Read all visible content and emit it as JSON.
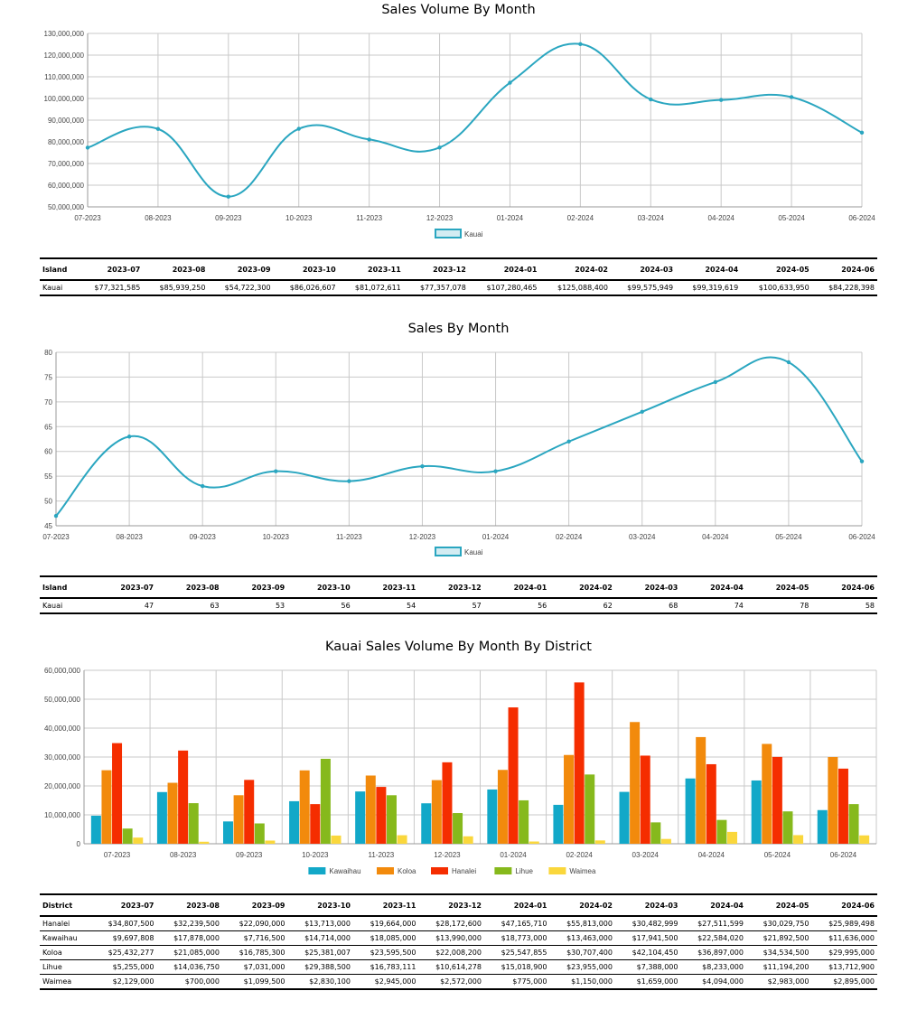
{
  "months": [
    "2023-07",
    "2023-08",
    "2023-09",
    "2023-10",
    "2023-11",
    "2023-12",
    "2024-01",
    "2024-02",
    "2024-03",
    "2024-04",
    "2024-05",
    "2024-06"
  ],
  "colors": {
    "line": "#2aa6c0",
    "Kawaihau": "#12a8c8",
    "Koloa": "#f28a0c",
    "Hanalei": "#f52d00",
    "Lihue": "#86b91c",
    "Waimea": "#fad73c"
  },
  "chart_data": [
    {
      "type": "line",
      "title": "Sales Volume By Month",
      "categories": [
        "07-2023",
        "08-2023",
        "09-2023",
        "10-2023",
        "11-2023",
        "12-2023",
        "01-2024",
        "02-2024",
        "03-2024",
        "04-2024",
        "05-2024",
        "06-2024"
      ],
      "series": [
        {
          "name": "Kauai",
          "values": [
            77321585,
            85939250,
            54722300,
            86026607,
            81072611,
            77357078,
            107280465,
            125088400,
            99575949,
            99319619,
            100633950,
            84228398
          ]
        }
      ],
      "ylim": [
        50000000,
        130000000
      ],
      "yticks": [
        50000000,
        60000000,
        70000000,
        80000000,
        90000000,
        100000000,
        110000000,
        120000000,
        130000000
      ],
      "ytick_labels": [
        "50,000,000",
        "60,000,000",
        "70,000,000",
        "80,000,000",
        "90,000,000",
        "100,000,000",
        "110,000,000",
        "120,000,000",
        "130,000,000"
      ],
      "legend": "bottom-center"
    },
    {
      "type": "line",
      "title": "Sales By Month",
      "categories": [
        "07-2023",
        "08-2023",
        "09-2023",
        "10-2023",
        "11-2023",
        "12-2023",
        "01-2024",
        "02-2024",
        "03-2024",
        "04-2024",
        "05-2024",
        "06-2024"
      ],
      "series": [
        {
          "name": "Kauai",
          "values": [
            47,
            63,
            53,
            56,
            54,
            57,
            56,
            62,
            68,
            74,
            78,
            58
          ]
        }
      ],
      "ylim": [
        45,
        80
      ],
      "yticks": [
        45,
        50,
        55,
        60,
        65,
        70,
        75,
        80
      ],
      "ytick_labels": [
        "45",
        "50",
        "55",
        "60",
        "65",
        "70",
        "75",
        "80"
      ],
      "legend": "bottom-center"
    },
    {
      "type": "bar",
      "title": "Kauai Sales Volume By Month By District",
      "categories": [
        "07-2023",
        "08-2023",
        "09-2023",
        "10-2023",
        "11-2023",
        "12-2023",
        "01-2024",
        "02-2024",
        "03-2024",
        "04-2024",
        "05-2024",
        "06-2024"
      ],
      "series": [
        {
          "name": "Kawaihau",
          "values": [
            9697808,
            17878000,
            7716500,
            14714000,
            18085000,
            13990000,
            18773000,
            13463000,
            17941500,
            22584020,
            21892500,
            11636000
          ]
        },
        {
          "name": "Koloa",
          "values": [
            25432277,
            21085000,
            16785300,
            25381007,
            23595500,
            22008200,
            25547855,
            30707400,
            42104450,
            36897000,
            34534500,
            29995000
          ]
        },
        {
          "name": "Hanalei",
          "values": [
            34807500,
            32239500,
            22090000,
            13713000,
            19664000,
            28172600,
            47165710,
            55813000,
            30482999,
            27511599,
            30029750,
            25989498
          ]
        },
        {
          "name": "Lihue",
          "values": [
            5255000,
            14036750,
            7031000,
            29388500,
            16783111,
            10614278,
            15018900,
            23955000,
            7388000,
            8233000,
            11194200,
            13712900
          ]
        },
        {
          "name": "Waimea",
          "values": [
            2129000,
            700000,
            1099500,
            2830100,
            2945000,
            2572000,
            775000,
            1150000,
            1659000,
            4094000,
            2983000,
            2895000
          ]
        }
      ],
      "ylim": [
        0,
        60000000
      ],
      "yticks": [
        0,
        10000000,
        20000000,
        30000000,
        40000000,
        50000000,
        60000000
      ],
      "ytick_labels": [
        "0",
        "10,000,000",
        "20,000,000",
        "30,000,000",
        "40,000,000",
        "50,000,000",
        "60,000,000"
      ],
      "legend": "bottom-center"
    }
  ],
  "tables": [
    {
      "header": [
        "Island",
        "2023-07",
        "2023-08",
        "2023-09",
        "2023-10",
        "2023-11",
        "2023-12",
        "2024-01",
        "2024-02",
        "2024-03",
        "2024-04",
        "2024-05",
        "2024-06"
      ],
      "rows": [
        [
          "Kauai",
          "$77,321,585",
          "$85,939,250",
          "$54,722,300",
          "$86,026,607",
          "$81,072,611",
          "$77,357,078",
          "$107,280,465",
          "$125,088,400",
          "$99,575,949",
          "$99,319,619",
          "$100,633,950",
          "$84,228,398"
        ]
      ]
    },
    {
      "header": [
        "Island",
        "2023-07",
        "2023-08",
        "2023-09",
        "2023-10",
        "2023-11",
        "2023-12",
        "2024-01",
        "2024-02",
        "2024-03",
        "2024-04",
        "2024-05",
        "2024-06"
      ],
      "rows": [
        [
          "Kauai",
          "47",
          "63",
          "53",
          "56",
          "54",
          "57",
          "56",
          "62",
          "68",
          "74",
          "78",
          "58"
        ]
      ]
    },
    {
      "header": [
        "District",
        "2023-07",
        "2023-08",
        "2023-09",
        "2023-10",
        "2023-11",
        "2023-12",
        "2024-01",
        "2024-02",
        "2024-03",
        "2024-04",
        "2024-05",
        "2024-06"
      ],
      "rows": [
        [
          "Hanalei",
          "$34,807,500",
          "$32,239,500",
          "$22,090,000",
          "$13,713,000",
          "$19,664,000",
          "$28,172,600",
          "$47,165,710",
          "$55,813,000",
          "$30,482,999",
          "$27,511,599",
          "$30,029,750",
          "$25,989,498"
        ],
        [
          "Kawaihau",
          "$9,697,808",
          "$17,878,000",
          "$7,716,500",
          "$14,714,000",
          "$18,085,000",
          "$13,990,000",
          "$18,773,000",
          "$13,463,000",
          "$17,941,500",
          "$22,584,020",
          "$21,892,500",
          "$11,636,000"
        ],
        [
          "Koloa",
          "$25,432,277",
          "$21,085,000",
          "$16,785,300",
          "$25,381,007",
          "$23,595,500",
          "$22,008,200",
          "$25,547,855",
          "$30,707,400",
          "$42,104,450",
          "$36,897,000",
          "$34,534,500",
          "$29,995,000"
        ],
        [
          "Lihue",
          "$5,255,000",
          "$14,036,750",
          "$7,031,000",
          "$29,388,500",
          "$16,783,111",
          "$10,614,278",
          "$15,018,900",
          "$23,955,000",
          "$7,388,000",
          "$8,233,000",
          "$11,194,200",
          "$13,712,900"
        ],
        [
          "Waimea",
          "$2,129,000",
          "$700,000",
          "$1,099,500",
          "$2,830,100",
          "$2,945,000",
          "$2,572,000",
          "$775,000",
          "$1,150,000",
          "$1,659,000",
          "$4,094,000",
          "$2,983,000",
          "$2,895,000"
        ]
      ]
    }
  ]
}
